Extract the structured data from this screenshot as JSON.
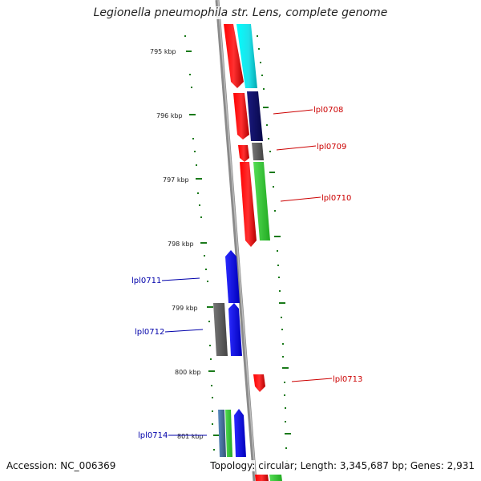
{
  "title": "Legionella pneumophila str. Lens, complete genome",
  "footer": {
    "accession_label": "Accession:",
    "accession": "NC_006369",
    "topology_label": "Topology:",
    "topology": "circular",
    "length_label": "Length:",
    "length": "3,345,687 bp",
    "genes_label": "Genes:",
    "genes": "2,931"
  },
  "scale_labels": [
    "795 kbp",
    "796 kbp",
    "797 kbp",
    "798 kbp",
    "799 kbp",
    "800 kbp",
    "801 kbp"
  ],
  "gene_labels": [
    {
      "text": "lpl0708",
      "color": "#cc0000"
    },
    {
      "text": "lpl0709",
      "color": "#cc0000"
    },
    {
      "text": "lpl0710",
      "color": "#cc0000"
    },
    {
      "text": "lpl0711",
      "color": "#0000aa"
    },
    {
      "text": "lpl0712",
      "color": "#0000aa"
    },
    {
      "text": "lpl0713",
      "color": "#cc0000"
    },
    {
      "text": "lpl0714",
      "color": "#0000aa"
    }
  ],
  "colors": {
    "backbone": "#8a8a8a",
    "tick": "#1a7a1a",
    "red": "#ff0000",
    "cyan": "#00ffff",
    "navy": "#101070",
    "grey": "#666666",
    "green": "#33cc33",
    "blue": "#0000ff",
    "steel": "#4477aa"
  }
}
